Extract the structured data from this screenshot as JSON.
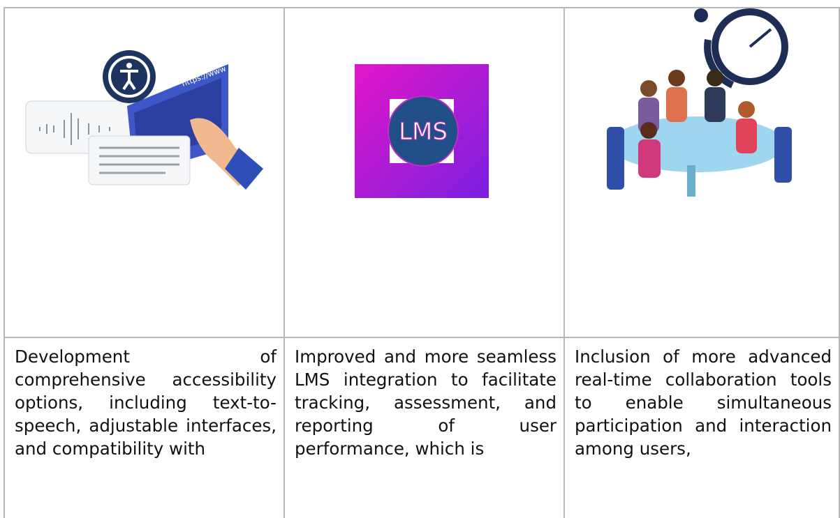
{
  "table": {
    "images": [
      {
        "label": "https://www"
      },
      {
        "label": "LMS"
      },
      {}
    ],
    "rows": [
      [
        "Development of comprehensive accessibility options, including text-to-speech, adjustable interfaces, and compatibility with",
        "Improved and more seamless LMS integration to facilitate tracking, assessment, and reporting of user performance, which is",
        "Inclusion of more advanced real-time collaboration tools to enable simultaneous participation and interaction among users,"
      ]
    ]
  }
}
